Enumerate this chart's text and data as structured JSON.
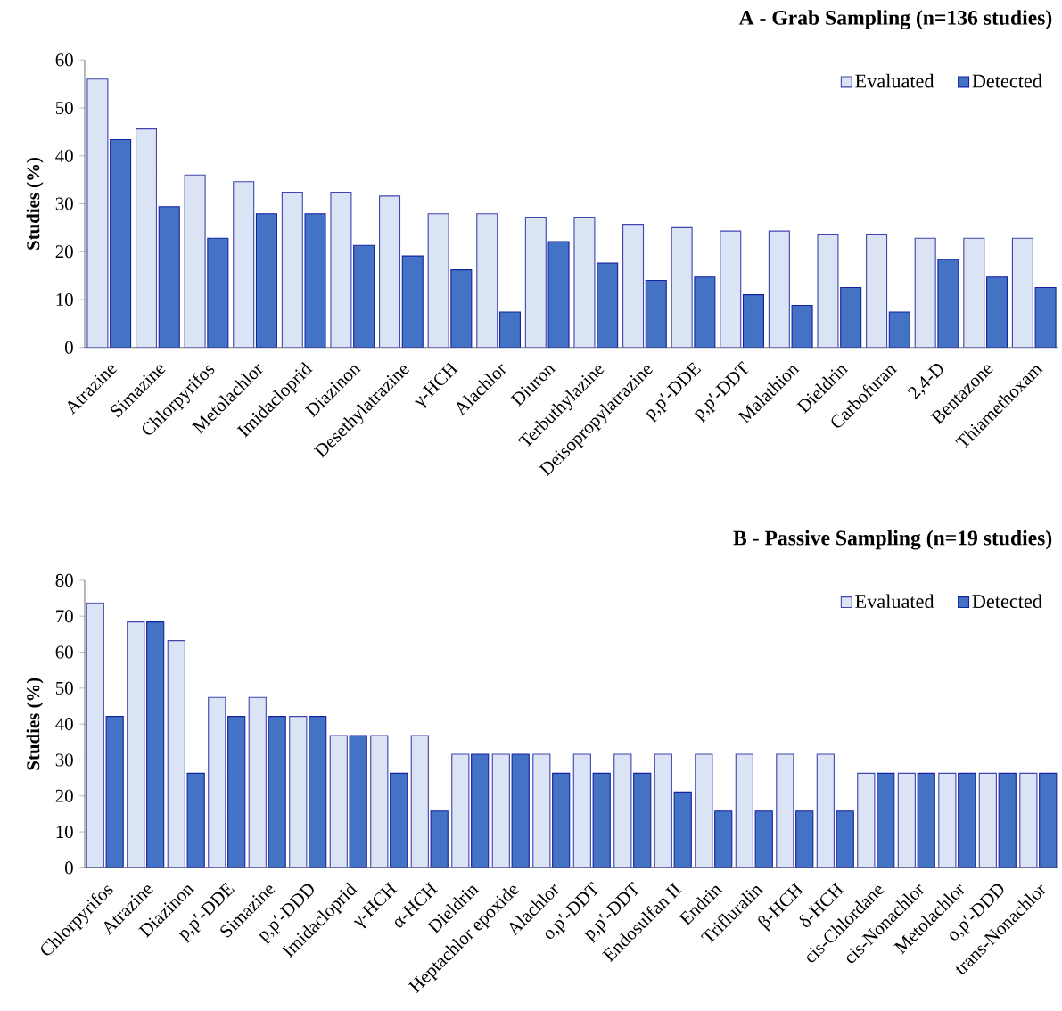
{
  "chart_data": [
    {
      "type": "bar",
      "title": "**A** - **Grab Sampling (n=136 studies)**",
      "ylabel": "Studies (%)",
      "categories": [
        "Atrazine",
        "Simazine",
        "Chlorpyrifos",
        "Metolachlor",
        "Imidacloprid",
        "Diazinon",
        "Desethylatrazine",
        "γ-HCH",
        "Alachlor",
        "Diuron",
        "Terbuthylazine",
        "Deisopropylatrazine",
        "p,p′-DDE",
        "p,p′-DDT",
        "Malathion",
        "Dieldrin",
        "Carbofuran",
        "2,4-D",
        "Bentazone",
        "Thiamethoxam"
      ],
      "series": [
        {
          "name": "Evaluated",
          "color": "#dbe4f4",
          "values": [
            56.0,
            45.6,
            36.0,
            34.6,
            32.4,
            32.4,
            31.6,
            27.9,
            27.9,
            27.2,
            27.2,
            25.7,
            25.0,
            24.3,
            24.3,
            23.5,
            23.5,
            22.8,
            22.8,
            22.8
          ]
        },
        {
          "name": "Detected",
          "color": "#4472c4",
          "values": [
            43.4,
            29.4,
            22.8,
            27.9,
            27.9,
            21.3,
            19.1,
            16.2,
            7.4,
            22.1,
            17.6,
            14.0,
            14.7,
            11.0,
            8.8,
            12.5,
            7.4,
            18.4,
            14.7,
            12.5
          ]
        }
      ],
      "ylim": [
        0,
        60
      ],
      "yticks": [
        0,
        10,
        20,
        30,
        40,
        50,
        60
      ],
      "legend": "top right"
    },
    {
      "type": "bar",
      "title": "**B** - **Passive Sampling (n=19 studies)**",
      "ylabel": "Studies (%)",
      "categories": [
        "Chlorpyrifos",
        "Atrazine",
        "Diazinon",
        "p,p′-DDE",
        "Simazine",
        "p,p′-DDD",
        "Imidacloprid",
        "γ-HCH",
        "α-HCH",
        "Dieldrin",
        "Heptachlor epoxide",
        "Alachlor",
        "o,p′-DDT",
        "p,p′-DDT",
        "Endosulfan II",
        "Endrin",
        "Trifluralin",
        "β-HCH",
        "δ-HCH",
        "cis-Chlordane",
        "cis-Nonachlor",
        "Metolachlor",
        "o,p′-DDD",
        "trans-Nonachlor"
      ],
      "series": [
        {
          "name": "Evaluated",
          "color": "#dbe4f4",
          "values": [
            73.7,
            68.4,
            63.2,
            47.4,
            47.4,
            42.1,
            36.8,
            36.8,
            36.8,
            31.6,
            31.6,
            31.6,
            31.6,
            31.6,
            31.6,
            31.6,
            31.6,
            31.6,
            31.6,
            26.3,
            26.3,
            26.3,
            26.3,
            26.3
          ]
        },
        {
          "name": "Detected",
          "color": "#4472c4",
          "values": [
            42.1,
            68.4,
            26.3,
            42.1,
            42.1,
            42.1,
            36.8,
            26.3,
            15.8,
            31.6,
            31.6,
            26.3,
            26.3,
            26.3,
            21.1,
            15.8,
            15.8,
            15.8,
            15.8,
            26.3,
            26.3,
            26.3,
            26.3,
            26.3
          ]
        }
      ],
      "ylim": [
        0,
        80
      ],
      "yticks": [
        0,
        10,
        20,
        30,
        40,
        50,
        60,
        70,
        80
      ],
      "legend": "top right"
    }
  ]
}
